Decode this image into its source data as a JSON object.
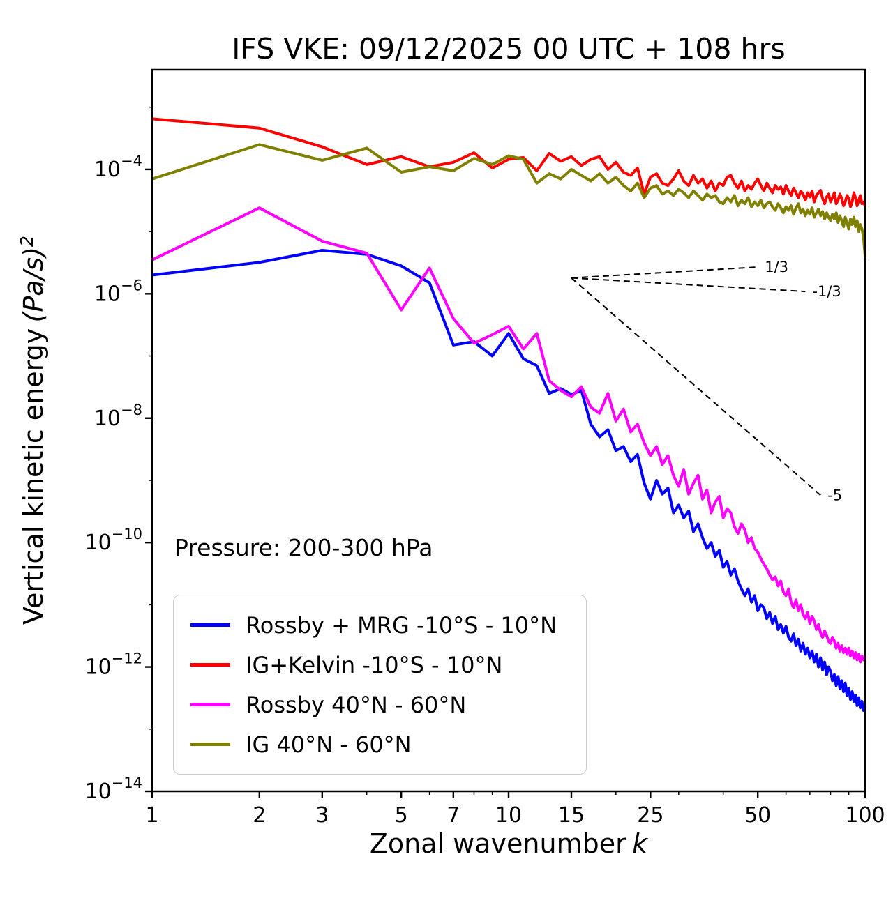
{
  "chart_data": {
    "type": "line",
    "title": "IFS VKE: 09/12/2025 00 UTC + 108 hrs",
    "xlabel": {
      "text": "Zonal wavenumber",
      "math": "k"
    },
    "ylabel": {
      "text": "Vertical kinetic energy",
      "math": "(Pa/s)",
      "sup": "2"
    },
    "annotation": "Pressure: 200-300 hPa",
    "xscale": "log",
    "yscale": "log",
    "xlim": [
      1,
      100
    ],
    "ylim": [
      1e-14,
      0.004
    ],
    "legend_position": "lower left",
    "grid": false,
    "xticks": {
      "major": [
        1,
        2,
        3,
        5,
        7,
        10,
        15,
        25,
        50,
        100
      ],
      "labels": [
        "1",
        "2",
        "3",
        "5",
        "7",
        "10",
        "15",
        "25",
        "50",
        "100"
      ],
      "minor": [
        4,
        6,
        8,
        9,
        20,
        30,
        40,
        60,
        70,
        80,
        90
      ]
    },
    "yticks": {
      "values": [
        0.0001,
        1e-06,
        1e-08,
        1e-10,
        1e-12,
        1e-14
      ],
      "labels": [
        {
          "base": "10",
          "exp": "−4"
        },
        {
          "base": "10",
          "exp": "−6"
        },
        {
          "base": "10",
          "exp": "−8"
        },
        {
          "base": "10",
          "exp": "−10"
        },
        {
          "base": "10",
          "exp": "−12"
        },
        {
          "base": "10",
          "exp": "−14"
        }
      ],
      "minor_values": [
        0.001,
        1e-05,
        1e-07,
        1e-09,
        1e-11,
        1e-13
      ]
    },
    "k": [
      1,
      2,
      3,
      4,
      5,
      6,
      7,
      8,
      9,
      10,
      11,
      12,
      13,
      14,
      15,
      16,
      17,
      18,
      19,
      20,
      21,
      22,
      23,
      24,
      25,
      26,
      27,
      28,
      29,
      30,
      31,
      32,
      33,
      34,
      35,
      36,
      37,
      38,
      39,
      40,
      41,
      42,
      43,
      44,
      45,
      46,
      47,
      48,
      49,
      50,
      51,
      52,
      53,
      54,
      55,
      56,
      57,
      58,
      59,
      60,
      61,
      62,
      63,
      64,
      65,
      66,
      67,
      68,
      69,
      70,
      71,
      72,
      73,
      74,
      75,
      76,
      77,
      78,
      79,
      80,
      81,
      82,
      83,
      84,
      85,
      86,
      87,
      88,
      89,
      90,
      91,
      92,
      93,
      94,
      95,
      96,
      97,
      98,
      99,
      100
    ],
    "series": [
      {
        "name": "rossby-mrg-tropics",
        "label": "Rossby + MRG -10°S - 10°N",
        "color": "#0000ff",
        "values": [
          2e-06,
          3.2e-06,
          5e-06,
          4.3e-06,
          2.8e-06,
          1.5e-06,
          1.5e-07,
          1.7e-07,
          1e-07,
          2.3e-07,
          9e-08,
          7e-08,
          2.5e-08,
          3e-08,
          2.4e-08,
          2.8e-08,
          8e-09,
          5e-09,
          6.5e-09,
          3e-09,
          3.5e-09,
          2e-09,
          2.6e-09,
          9e-10,
          5e-10,
          1e-09,
          6e-10,
          7.5e-10,
          3e-10,
          4e-10,
          2.5e-10,
          3.2e-10,
          1.5e-10,
          2e-10,
          1.2e-10,
          8e-11,
          1e-10,
          6e-11,
          7.5e-11,
          4e-11,
          5e-11,
          3e-11,
          3.8e-11,
          2.4e-11,
          1.8e-11,
          1.4e-11,
          1.8e-11,
          1.1e-11,
          1.4e-11,
          8e-12,
          1e-11,
          9e-12,
          6e-12,
          7.5e-12,
          5e-12,
          6.5e-12,
          4e-12,
          4.8e-12,
          3.5e-12,
          4.5e-12,
          3e-12,
          2.6e-12,
          3.4e-12,
          2.2e-12,
          2.8e-12,
          1.8e-12,
          2.4e-12,
          1.6e-12,
          2e-12,
          1.4e-12,
          1.8e-12,
          1.2e-12,
          1.6e-12,
          1e-12,
          1.4e-12,
          9e-13,
          1.2e-12,
          7.5e-13,
          1e-12,
          8.5e-13,
          6e-13,
          7.5e-13,
          5e-13,
          7e-13,
          4.5e-13,
          6e-13,
          4e-13,
          5.5e-13,
          3.5e-13,
          4.5e-13,
          3e-13,
          4e-13,
          2.8e-13,
          3.5e-13,
          2.4e-13,
          3.2e-13,
          2.2e-13,
          2.8e-13,
          2e-13,
          2.4e-13
        ]
      },
      {
        "name": "ig-kelvin-tropics",
        "label": "IG+Kelvin -10°S - 10°N",
        "color": "#ff0000",
        "values": [
          0.00065,
          0.00046,
          0.00023,
          0.00012,
          0.00016,
          0.00011,
          0.00013,
          0.000185,
          0.000105,
          0.000145,
          0.000155,
          9.5e-05,
          0.00018,
          0.000135,
          0.00016,
          0.000115,
          0.000145,
          0.00016,
          0.0001,
          0.00013,
          9e-05,
          8e-05,
          0.000105,
          4e-05,
          7.5e-05,
          8.5e-05,
          6e-05,
          5.5e-05,
          7e-05,
          9.5e-05,
          6.5e-05,
          5.5e-05,
          8e-05,
          6e-05,
          7e-05,
          5e-05,
          6.5e-05,
          4.5e-05,
          6e-05,
          5.5e-05,
          7.5e-05,
          8e-05,
          6e-05,
          5e-05,
          6.5e-05,
          4.5e-05,
          5.5e-05,
          4.8e-05,
          6e-05,
          7e-05,
          5.5e-05,
          4.5e-05,
          6e-05,
          5e-05,
          4.2e-05,
          5.5e-05,
          4.8e-05,
          5.2e-05,
          4e-05,
          5.5e-05,
          4.5e-05,
          3.8e-05,
          5e-05,
          4.2e-05,
          3.5e-05,
          4.5e-05,
          4e-05,
          3.2e-05,
          4.2e-05,
          3.6e-05,
          4.5e-05,
          3e-05,
          3.8e-05,
          4.2e-05,
          4.6e-05,
          3.4e-05,
          2.8e-05,
          3.6e-05,
          4e-05,
          3e-05,
          3.5e-05,
          4.2e-05,
          2.8e-05,
          3.2e-05,
          4e-05,
          3.4e-05,
          2.6e-05,
          3e-05,
          3.8e-05,
          3.4e-05,
          2.5e-05,
          3e-05,
          4.2e-05,
          3.5e-05,
          2.6e-05,
          3.2e-05,
          3.8e-05,
          2.8e-05,
          3e-05,
          2.6e-05
        ]
      },
      {
        "name": "rossby-midlat",
        "label": "Rossby 40°N - 60°N",
        "color": "#ff00ff",
        "values": [
          3.5e-06,
          2.4e-05,
          7e-06,
          4.5e-06,
          5.5e-07,
          2.6e-06,
          4e-07,
          1.6e-07,
          2.2e-07,
          3e-07,
          1.3e-07,
          2.3e-07,
          4e-08,
          2.8e-08,
          2.2e-08,
          3.2e-08,
          1.5e-08,
          1.2e-08,
          2.5e-08,
          9e-09,
          1.4e-08,
          6e-09,
          8e-09,
          4e-09,
          2.5e-09,
          3.5e-09,
          1.8e-09,
          2.5e-09,
          1.2e-09,
          8e-10,
          1.5e-09,
          6e-10,
          9e-10,
          1.2e-09,
          5e-10,
          7e-10,
          3e-10,
          4.5e-10,
          5.5e-10,
          2.5e-10,
          3.5e-10,
          3e-10,
          1.8e-10,
          1.4e-10,
          2e-10,
          1.6e-10,
          1e-10,
          1.2e-10,
          8e-11,
          7e-11,
          5.5e-11,
          4.5e-11,
          3.8e-11,
          3e-11,
          2.5e-11,
          2.8e-11,
          2e-11,
          2.4e-11,
          1.6e-11,
          1.4e-11,
          1.8e-11,
          1.1e-11,
          9e-12,
          1.2e-11,
          8e-12,
          1e-11,
          7e-12,
          6e-12,
          7.5e-12,
          5e-12,
          6.5e-12,
          5.5e-12,
          4e-12,
          4.8e-12,
          3.5e-12,
          3e-12,
          3.8e-12,
          3.2e-12,
          2.6e-12,
          2.4e-12,
          3e-12,
          2.6e-12,
          2e-12,
          2.4e-12,
          1.8e-12,
          2.2e-12,
          1.7e-12,
          2e-12,
          1.6e-12,
          2e-12,
          1.5e-12,
          1.8e-12,
          1.4e-12,
          1.7e-12,
          1.3e-12,
          1.6e-12,
          1.2e-12,
          1.5e-12,
          1.3e-12,
          1.4e-12
        ]
      },
      {
        "name": "ig-midlat",
        "label": "IG 40°N - 60°N",
        "color": "#808000",
        "values": [
          7e-05,
          0.00025,
          0.00014,
          0.00022,
          9e-05,
          0.00011,
          9.5e-05,
          0.00015,
          0.00012,
          0.000165,
          0.000145,
          6e-05,
          8.5e-05,
          7e-05,
          0.0001,
          8e-05,
          6.5e-05,
          8.5e-05,
          6e-05,
          7.5e-05,
          5.5e-05,
          4.5e-05,
          6e-05,
          3.5e-05,
          5e-05,
          5.5e-05,
          4e-05,
          4.5e-05,
          3.8e-05,
          4.8e-05,
          4.2e-05,
          3.5e-05,
          4.5e-05,
          3.8e-05,
          3.2e-05,
          4e-05,
          3.5e-05,
          3.8e-05,
          3e-05,
          2.8e-05,
          3.5e-05,
          3e-05,
          3.8e-05,
          2.6e-05,
          3.2e-05,
          2.8e-05,
          3.5e-05,
          2.5e-05,
          3e-05,
          2.6e-05,
          3.2e-05,
          2.4e-05,
          2.8e-05,
          3e-05,
          2.5e-05,
          2.2e-05,
          2.8e-05,
          2.4e-05,
          2e-05,
          2.5e-05,
          2.2e-05,
          2.6e-05,
          1.9e-05,
          2.4e-05,
          2.8e-05,
          2e-05,
          2.3e-05,
          1.8e-05,
          2.2e-05,
          1.9e-05,
          2.4e-05,
          1.7e-05,
          2e-05,
          2.3e-05,
          1.8e-05,
          2.1e-05,
          1.6e-05,
          2e-05,
          1.7e-05,
          1.5e-05,
          1.9e-05,
          1.6e-05,
          2e-05,
          1.4e-05,
          1.8e-05,
          1.5e-05,
          1.2e-05,
          1.7e-05,
          1.4e-05,
          1.1e-05,
          1.6e-05,
          1.3e-05,
          1.7e-05,
          1.2e-05,
          1.5e-05,
          1e-05,
          1.3e-05,
          1.1e-05,
          8e-06,
          4e-06
        ]
      }
    ],
    "reference_lines": [
      {
        "label": "1/3",
        "slope": 0.3333,
        "x0": 15,
        "y0": 1.8e-06,
        "x1": 50
      },
      {
        "label": "-1/3",
        "slope": -0.3333,
        "x0": 15,
        "y0": 1.8e-06,
        "x1": 68
      },
      {
        "label": "-5",
        "slope": -5,
        "x0": 15,
        "y0": 1.8e-06,
        "x1": 75
      }
    ]
  }
}
